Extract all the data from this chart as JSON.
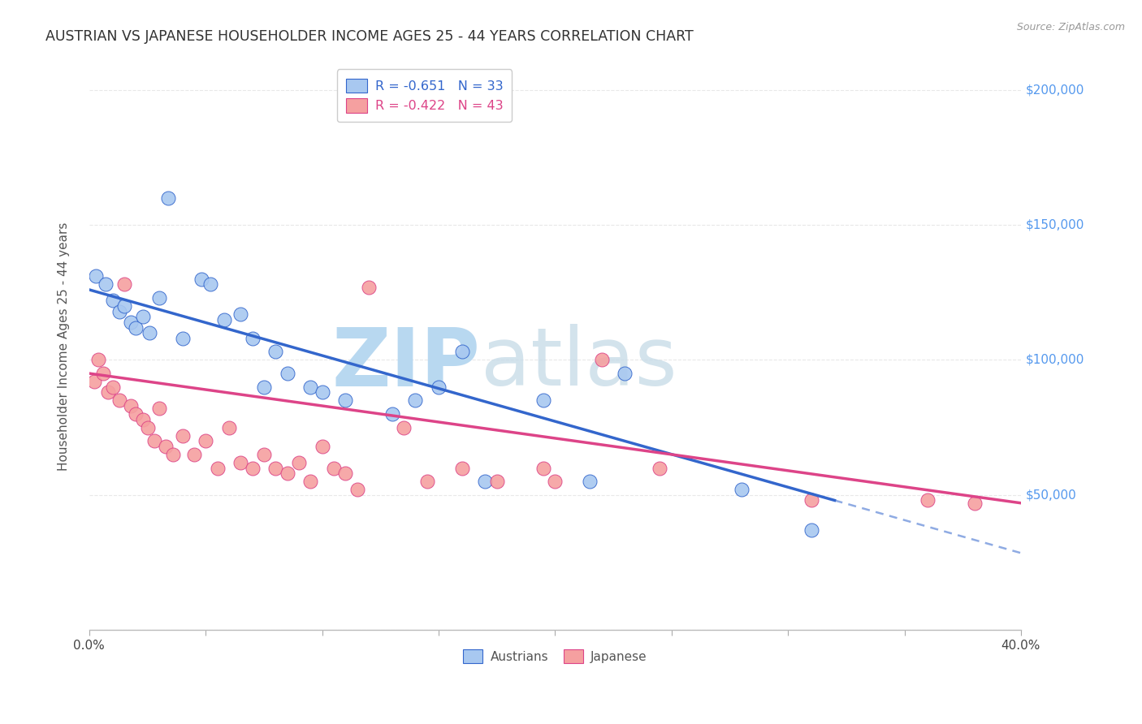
{
  "title": "AUSTRIAN VS JAPANESE HOUSEHOLDER INCOME AGES 25 - 44 YEARS CORRELATION CHART",
  "source": "Source: ZipAtlas.com",
  "ylabel": "Householder Income Ages 25 - 44 years",
  "legend_austrians": "Austrians",
  "legend_japanese": "Japanese",
  "legend_r_austrians": "R = -0.651",
  "legend_n_austrians": "N = 33",
  "legend_r_japanese": "R = -0.422",
  "legend_n_japanese": "N = 43",
  "austrians_x": [
    0.3,
    0.7,
    1.0,
    1.3,
    1.5,
    1.8,
    2.0,
    2.3,
    2.6,
    3.0,
    3.4,
    4.0,
    4.8,
    5.2,
    5.8,
    6.5,
    7.0,
    7.5,
    8.0,
    8.5,
    9.5,
    10.0,
    11.0,
    13.0,
    14.0,
    15.0,
    16.0,
    17.0,
    19.5,
    21.5,
    23.0,
    28.0,
    31.0
  ],
  "austrians_y": [
    131000,
    128000,
    122000,
    118000,
    120000,
    114000,
    112000,
    116000,
    110000,
    123000,
    160000,
    108000,
    130000,
    128000,
    115000,
    117000,
    108000,
    90000,
    103000,
    95000,
    90000,
    88000,
    85000,
    80000,
    85000,
    90000,
    103000,
    55000,
    85000,
    55000,
    95000,
    52000,
    37000
  ],
  "japanese_x": [
    0.2,
    0.4,
    0.6,
    0.8,
    1.0,
    1.3,
    1.5,
    1.8,
    2.0,
    2.3,
    2.5,
    2.8,
    3.0,
    3.3,
    3.6,
    4.0,
    4.5,
    5.0,
    5.5,
    6.0,
    6.5,
    7.0,
    7.5,
    8.0,
    8.5,
    9.0,
    9.5,
    10.0,
    10.5,
    11.0,
    11.5,
    12.0,
    13.5,
    14.5,
    16.0,
    17.5,
    19.5,
    20.0,
    22.0,
    24.5,
    31.0,
    36.0,
    38.0
  ],
  "japanese_y": [
    92000,
    100000,
    95000,
    88000,
    90000,
    85000,
    128000,
    83000,
    80000,
    78000,
    75000,
    70000,
    82000,
    68000,
    65000,
    72000,
    65000,
    70000,
    60000,
    75000,
    62000,
    60000,
    65000,
    60000,
    58000,
    62000,
    55000,
    68000,
    60000,
    58000,
    52000,
    127000,
    75000,
    55000,
    60000,
    55000,
    60000,
    55000,
    100000,
    60000,
    48000,
    48000,
    47000
  ],
  "color_austrians": "#a8c8f0",
  "color_japanese": "#f5a0a0",
  "color_trendline_austrians": "#3366cc",
  "color_trendline_japanese": "#dd4488",
  "watermark_zip_color": "#c8dff5",
  "watermark_atlas_color": "#c8dff5",
  "watermark_text_zip": "ZIP",
  "watermark_text_atlas": "atlas",
  "xmin": 0.0,
  "xmax": 40.0,
  "ymin": 0,
  "ymax": 210000,
  "yticks": [
    0,
    50000,
    100000,
    150000,
    200000
  ],
  "ytick_labels_right": [
    "",
    "$50,000",
    "$100,000",
    "$150,000",
    "$200,000"
  ],
  "background_color": "#ffffff",
  "grid_color": "#e8e8e8",
  "a_trend_x0": 0.0,
  "a_trend_y0": 126000,
  "a_trend_x1": 32.0,
  "a_trend_y1": 48000,
  "a_dash_x0": 32.0,
  "a_dash_x1": 40.0,
  "j_trend_x0": 0.0,
  "j_trend_y0": 95000,
  "j_trend_x1": 40.0,
  "j_trend_y1": 47000
}
